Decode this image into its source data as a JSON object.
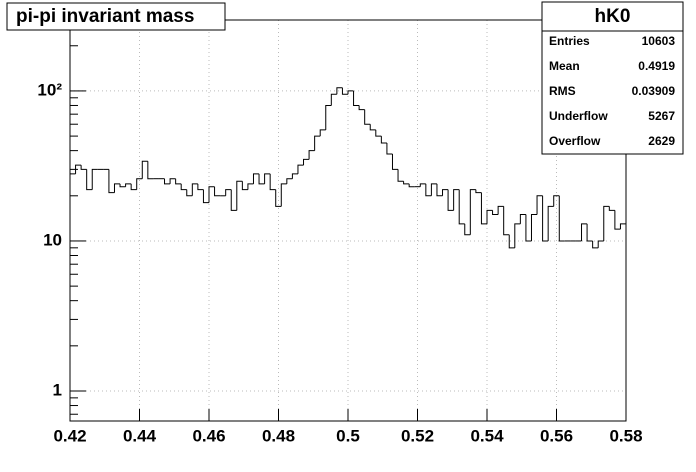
{
  "chart_data": {
    "type": "histogram",
    "title": "pi-pi invariant mass",
    "bins": [
      0.42,
      0.4216,
      0.4232,
      0.4248,
      0.4264,
      0.428,
      0.4296,
      0.4312,
      0.4328,
      0.4344,
      0.436,
      0.4376,
      0.4392,
      0.4408,
      0.4424,
      0.444,
      0.4456,
      0.4472,
      0.4488,
      0.4504,
      0.452,
      0.4536,
      0.4552,
      0.4568,
      0.4584,
      0.46,
      0.4616,
      0.4632,
      0.4648,
      0.4664,
      0.468,
      0.4696,
      0.4712,
      0.4728,
      0.4744,
      0.476,
      0.4776,
      0.4792,
      0.4808,
      0.4824,
      0.484,
      0.4856,
      0.4872,
      0.4888,
      0.4904,
      0.492,
      0.4936,
      0.4952,
      0.4968,
      0.4984,
      0.5,
      0.5016,
      0.5032,
      0.5048,
      0.5064,
      0.508,
      0.5096,
      0.5112,
      0.5128,
      0.5144,
      0.516,
      0.5176,
      0.5192,
      0.5208,
      0.5224,
      0.524,
      0.5256,
      0.5272,
      0.5288,
      0.5304,
      0.532,
      0.5336,
      0.5352,
      0.5368,
      0.5384,
      0.54,
      0.5416,
      0.5432,
      0.5448,
      0.5464,
      0.548,
      0.5496,
      0.5512,
      0.5528,
      0.5544,
      0.556,
      0.5576,
      0.5592,
      0.5608,
      0.5624,
      0.564,
      0.5656,
      0.5672,
      0.5688,
      0.5704,
      0.572,
      0.5736,
      0.5752,
      0.5768,
      0.5784,
      0.58
    ],
    "values": [
      28,
      32,
      30,
      22,
      30,
      30,
      30,
      21,
      24,
      23,
      24,
      22,
      26,
      34,
      26,
      26,
      26,
      24,
      26,
      24,
      22,
      20,
      24,
      22,
      18,
      23,
      20,
      20,
      22,
      16,
      25,
      22,
      24,
      28,
      24,
      28,
      22,
      17,
      24,
      26,
      28,
      32,
      35,
      40,
      50,
      55,
      80,
      95,
      105,
      95,
      100,
      80,
      75,
      60,
      55,
      50,
      45,
      38,
      30,
      25,
      24,
      23,
      23,
      24,
      20,
      24,
      20,
      22,
      16,
      22,
      13,
      11,
      22,
      21,
      13,
      16,
      15,
      17,
      11,
      9,
      13,
      15,
      10,
      15,
      20,
      10,
      17,
      20,
      10,
      10,
      10,
      10,
      13,
      10,
      9,
      10,
      17,
      16,
      12,
      13
    ],
    "color": "#000000",
    "xlim": [
      0.42,
      0.58
    ],
    "xticks": [
      0.42,
      0.44,
      0.46,
      0.48,
      0.5,
      0.52,
      0.54,
      0.56,
      0.58
    ],
    "ylim": [
      0.631,
      297
    ],
    "log_y": true,
    "yticks": [
      1,
      10,
      {
        "value": 100,
        "label": "10²"
      }
    ],
    "yticks_minor": [
      0.7,
      0.8,
      0.9,
      2,
      3,
      4,
      5,
      6,
      7,
      8,
      9,
      20,
      30,
      40,
      50,
      60,
      70,
      80,
      90,
      200
    ],
    "grid": true,
    "stats": {
      "title": "hK0",
      "rows": [
        [
          "Entries",
          10603
        ],
        [
          "Mean",
          0.4919
        ],
        [
          "RMS",
          0.03909
        ],
        [
          "Underflow",
          5267
        ],
        [
          "Overflow",
          2629
        ]
      ]
    }
  }
}
